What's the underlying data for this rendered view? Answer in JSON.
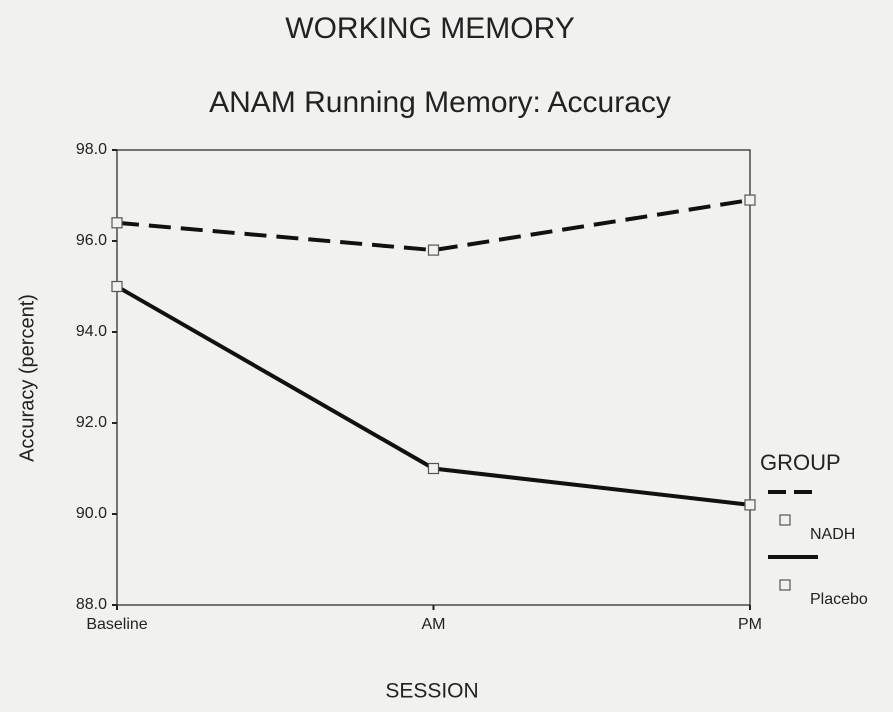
{
  "chart_data": {
    "type": "line",
    "title": "WORKING MEMORY",
    "subtitle": "ANAM Running Memory: Accuracy",
    "x_label": "SESSION",
    "y_label": "Accuracy (percent)",
    "categories": [
      "Baseline",
      "AM",
      "PM"
    ],
    "legend_title": "GROUP",
    "legend_position": "right",
    "series": [
      {
        "name": "NADH",
        "color": "#111111",
        "dashed": true,
        "values": [
          96.4,
          95.8,
          96.9
        ]
      },
      {
        "name": "Placebo",
        "color": "#111111",
        "dashed": false,
        "values": [
          95.0,
          91.0,
          90.2
        ]
      }
    ],
    "ylim": [
      88,
      98
    ],
    "yticks": [
      {
        "value": 88,
        "label": "88.0"
      },
      {
        "value": 90,
        "label": "90.0"
      },
      {
        "value": 92,
        "label": "92.0"
      },
      {
        "value": 94,
        "label": "94.0"
      },
      {
        "value": 96,
        "label": "96.0"
      },
      {
        "value": 98,
        "label": "98.0"
      }
    ],
    "grid": false
  }
}
